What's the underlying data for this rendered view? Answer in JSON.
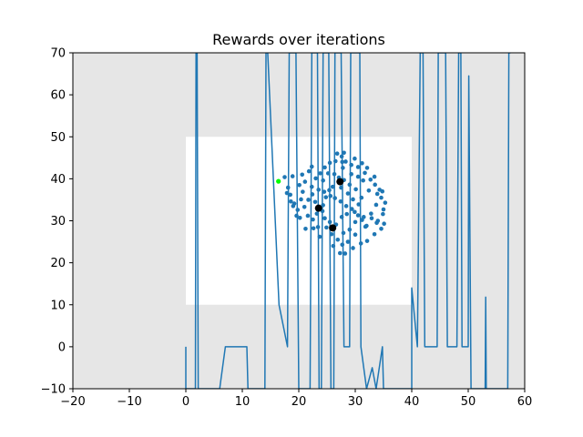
{
  "chart_data": {
    "type": "line",
    "title": "Rewards over iterations",
    "xlabel": "",
    "ylabel": "",
    "xlim": [
      -20,
      60
    ],
    "ylim": [
      -10,
      70
    ],
    "x_ticks": [
      -20,
      -10,
      0,
      10,
      20,
      30,
      40,
      50,
      60
    ],
    "y_ticks": [
      -10,
      0,
      10,
      20,
      30,
      40,
      50,
      60,
      70
    ],
    "grid": false,
    "legend": "none",
    "colors": {
      "line": "#1f77b4",
      "points": "#1f77b4",
      "centroids": "#000000",
      "highlight": "#00ff00",
      "shade": "#e6e6e6",
      "frame": "#000000"
    },
    "shaded_regions": [
      {
        "x": [
          -20,
          0
        ],
        "y": [
          -10,
          70
        ]
      },
      {
        "x": [
          40,
          60
        ],
        "y": [
          -10,
          70
        ]
      },
      {
        "x": [
          0,
          40
        ],
        "y": [
          50,
          70
        ]
      },
      {
        "x": [
          0,
          40
        ],
        "y": [
          -10,
          10
        ]
      }
    ],
    "line_series": [
      [
        0,
        0
      ],
      [
        0,
        -10
      ],
      [
        1.7,
        -10
      ],
      [
        1.8,
        70
      ],
      [
        2.0,
        70
      ],
      [
        2.2,
        -10
      ],
      [
        6,
        -10
      ],
      [
        6.2,
        -8
      ],
      [
        7.0,
        0
      ],
      [
        10.8,
        0
      ],
      [
        11.0,
        -10
      ],
      [
        14.0,
        -10
      ],
      [
        14.2,
        70
      ],
      [
        14.5,
        70
      ],
      [
        16.5,
        10
      ],
      [
        18,
        0
      ],
      [
        18.3,
        70
      ],
      [
        19.5,
        70
      ],
      [
        20.0,
        -10
      ],
      [
        22.0,
        -10
      ],
      [
        22.3,
        70
      ],
      [
        23.3,
        70
      ],
      [
        23.6,
        -10
      ],
      [
        24,
        -10
      ],
      [
        24.3,
        70
      ],
      [
        25.3,
        70
      ],
      [
        25.7,
        -10
      ],
      [
        26.2,
        -10
      ],
      [
        26.4,
        70
      ],
      [
        27.5,
        70
      ],
      [
        28,
        0
      ],
      [
        29,
        0
      ],
      [
        29.2,
        70
      ],
      [
        30.8,
        70
      ],
      [
        31.0,
        0
      ],
      [
        32.0,
        -10
      ],
      [
        33.0,
        -5
      ],
      [
        33.7,
        -10
      ],
      [
        34.8,
        0
      ],
      [
        35.0,
        -10
      ],
      [
        40,
        -10
      ],
      [
        40.0,
        14
      ],
      [
        41,
        0
      ],
      [
        41.5,
        70
      ],
      [
        42,
        70
      ],
      [
        42.3,
        0
      ],
      [
        44.5,
        0
      ],
      [
        44.7,
        70
      ],
      [
        46,
        70
      ],
      [
        46.3,
        0
      ],
      [
        48,
        0
      ],
      [
        48.3,
        70
      ],
      [
        48.7,
        70
      ],
      [
        48.9,
        0
      ],
      [
        50,
        0
      ],
      [
        50.1,
        64.5
      ],
      [
        50.5,
        -10
      ],
      [
        53,
        -10
      ],
      [
        53.1,
        11.8
      ],
      [
        53.2,
        -10
      ],
      [
        57,
        -10
      ],
      [
        57.2,
        70
      ],
      [
        57.5,
        70
      ]
    ],
    "scatter_points": [
      [
        17.5,
        40.4
      ],
      [
        18.1,
        37.9
      ],
      [
        18.5,
        36.2
      ],
      [
        19.2,
        34.1
      ],
      [
        19.8,
        32.6
      ],
      [
        18.6,
        34.6
      ],
      [
        17.9,
        36.6
      ],
      [
        18.9,
        40.6
      ],
      [
        20.6,
        41.0
      ],
      [
        21.1,
        39.3
      ],
      [
        20.7,
        36.9
      ],
      [
        20.4,
        35.1
      ],
      [
        21.0,
        33.3
      ],
      [
        21.6,
        31.2
      ],
      [
        22.5,
        30.3
      ],
      [
        23.2,
        31.7
      ],
      [
        24.3,
        33.7
      ],
      [
        24.8,
        35.6
      ],
      [
        25.4,
        37.3
      ],
      [
        22.3,
        38.1
      ],
      [
        23.0,
        40.1
      ],
      [
        23.8,
        41.3
      ],
      [
        24.6,
        42.7
      ],
      [
        25.5,
        43.8
      ],
      [
        26.5,
        44.2
      ],
      [
        27.6,
        45.3
      ],
      [
        28.3,
        44.1
      ],
      [
        29.3,
        43.3
      ],
      [
        30.5,
        42.8
      ],
      [
        31.7,
        41.4
      ],
      [
        32.7,
        39.8
      ],
      [
        33.5,
        38.6
      ],
      [
        34.3,
        37.4
      ],
      [
        34.6,
        35.5
      ],
      [
        33.7,
        33.8
      ],
      [
        32.8,
        31.7
      ],
      [
        31.2,
        30.2
      ],
      [
        30.0,
        29.7
      ],
      [
        29.0,
        27.9
      ],
      [
        27.9,
        27.1
      ],
      [
        26.9,
        25.5
      ],
      [
        26.1,
        24.0
      ],
      [
        27.3,
        22.3
      ],
      [
        28.2,
        22.2
      ],
      [
        29.6,
        23.5
      ],
      [
        31.0,
        24.6
      ],
      [
        32.1,
        25.2
      ],
      [
        33.4,
        26.8
      ],
      [
        34.6,
        28.1
      ],
      [
        35.1,
        29.3
      ],
      [
        34.0,
        30.0
      ],
      [
        32.9,
        30.6
      ],
      [
        31.5,
        30.9
      ],
      [
        30.5,
        31.3
      ],
      [
        29.4,
        32.8
      ],
      [
        28.4,
        33.5
      ],
      [
        27.4,
        34.6
      ],
      [
        26.4,
        35.4
      ],
      [
        25.6,
        35.9
      ],
      [
        24.5,
        36.9
      ],
      [
        23.5,
        37.4
      ],
      [
        22.4,
        36.3
      ],
      [
        21.7,
        35.0
      ],
      [
        22.9,
        34.5
      ],
      [
        24.2,
        32.3
      ],
      [
        24.6,
        30.6
      ],
      [
        25.5,
        29.7
      ],
      [
        26.6,
        29.1
      ],
      [
        27.6,
        30.9
      ],
      [
        28.5,
        31.6
      ],
      [
        29.9,
        32.1
      ],
      [
        30.6,
        33.9
      ],
      [
        31.1,
        35.5
      ],
      [
        30.1,
        37.5
      ],
      [
        29.0,
        38.6
      ],
      [
        28.0,
        39.7
      ],
      [
        27.1,
        40.3
      ],
      [
        26.3,
        41.1
      ],
      [
        25.2,
        41.3
      ],
      [
        24.3,
        39.6
      ],
      [
        26.0,
        38.1
      ],
      [
        27.5,
        37.9
      ],
      [
        28.7,
        36.5
      ],
      [
        29.6,
        35.1
      ],
      [
        28.0,
        46.2
      ],
      [
        26.8,
        46.0
      ],
      [
        27.8,
        42.6
      ],
      [
        29.3,
        41.1
      ],
      [
        31.2,
        43.7
      ],
      [
        32.4,
        37.2
      ],
      [
        33.9,
        36.4
      ],
      [
        35.0,
        32.7
      ],
      [
        32.0,
        28.8
      ],
      [
        30.0,
        26.7
      ],
      [
        28.7,
        25.0
      ],
      [
        27.7,
        24.3
      ],
      [
        25.8,
        26.8
      ],
      [
        23.7,
        26.2
      ],
      [
        22.6,
        28.2
      ],
      [
        21.2,
        28.1
      ],
      [
        20.2,
        30.7
      ],
      [
        19.6,
        31.2
      ],
      [
        31.8,
        28.6
      ],
      [
        33.8,
        29.5
      ],
      [
        34.9,
        31.6
      ],
      [
        35.3,
        34.3
      ],
      [
        34.8,
        37.0
      ],
      [
        33.4,
        40.5
      ],
      [
        32.1,
        42.6
      ],
      [
        29.9,
        44.8
      ],
      [
        22.3,
        42.9
      ],
      [
        21.8,
        41.8
      ],
      [
        20.1,
        38.5
      ],
      [
        19.0,
        33.5
      ],
      [
        24.9,
        28.4
      ],
      [
        23.4,
        28.5
      ],
      [
        27.7,
        44.0
      ],
      [
        30.5,
        40.5
      ],
      [
        31.4,
        39.6
      ]
    ],
    "centroids": [
      [
        27.3,
        39.3
      ],
      [
        23.5,
        33.0
      ],
      [
        26.0,
        28.3
      ]
    ],
    "highlight_point": [
      16.4,
      39.4
    ]
  }
}
